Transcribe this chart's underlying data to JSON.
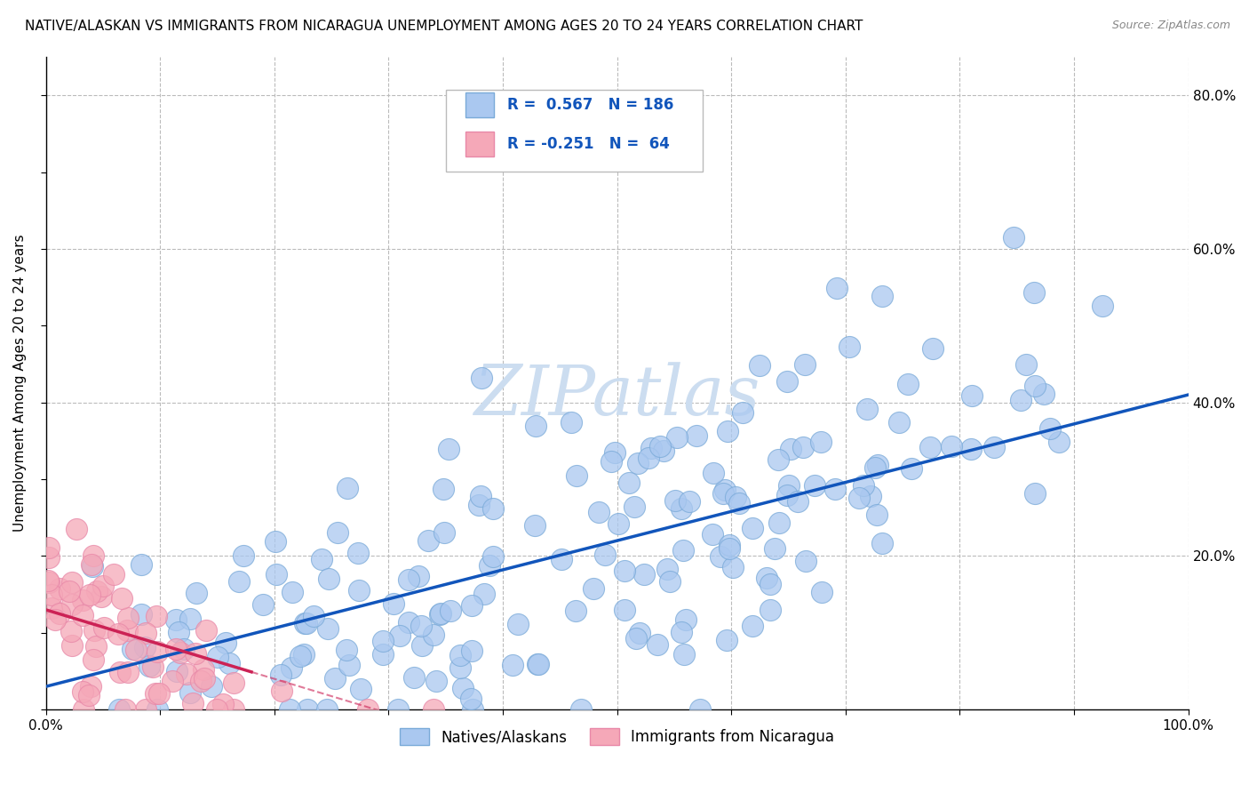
{
  "title": "NATIVE/ALASKAN VS IMMIGRANTS FROM NICARAGUA UNEMPLOYMENT AMONG AGES 20 TO 24 YEARS CORRELATION CHART",
  "source": "Source: ZipAtlas.com",
  "ylabel": "Unemployment Among Ages 20 to 24 years",
  "watermark": "ZIPatlas",
  "series1_label": "Natives/Alaskans",
  "series2_label": "Immigrants from Nicaragua",
  "series1_R": 0.567,
  "series1_N": 186,
  "series2_R": -0.251,
  "series2_N": 64,
  "series1_color": "#aac8f0",
  "series2_color": "#f5a8b8",
  "series1_edge_color": "#7aaad8",
  "series2_edge_color": "#e888a8",
  "series1_line_color": "#1155bb",
  "series2_line_color": "#cc2255",
  "xlim": [
    0,
    1.0
  ],
  "ylim": [
    0,
    0.85
  ],
  "grid_color": "#bbbbbb",
  "bg_color": "#ffffff",
  "title_fontsize": 11,
  "axis_label_fontsize": 11,
  "tick_fontsize": 11,
  "legend_fontsize": 12,
  "watermark_fontsize": 56,
  "watermark_color": "#ccddf0",
  "right_ytick_labels": [
    "20.0%",
    "40.0%",
    "60.0%",
    "80.0%"
  ],
  "right_ytick_positions": [
    0.2,
    0.4,
    0.6,
    0.8
  ],
  "legend_R_color": "#1155bb"
}
